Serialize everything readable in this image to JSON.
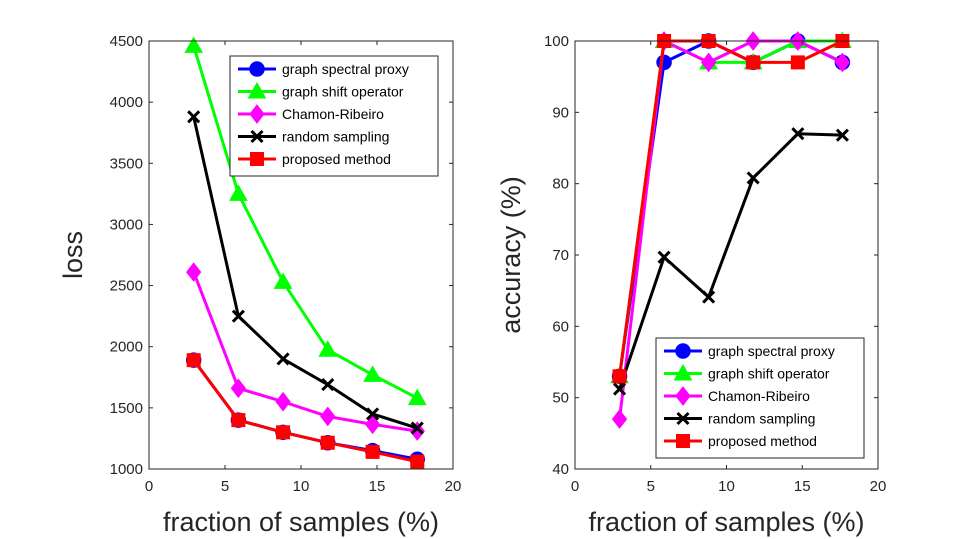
{
  "chart_data": [
    {
      "type": "line",
      "title": "",
      "xlabel": "fraction of samples (%)",
      "ylabel": "loss",
      "xlim": [
        0,
        20
      ],
      "ylim": [
        1000,
        4500
      ],
      "xticks": [
        0,
        5,
        10,
        15,
        20
      ],
      "yticks": [
        1000,
        1500,
        2000,
        2500,
        3000,
        3500,
        4000,
        4500
      ],
      "x": [
        2.94,
        5.88,
        8.82,
        11.76,
        14.71,
        17.65
      ],
      "legend_position": "top-right",
      "series": [
        {
          "name": "graph spectral proxy",
          "color": "#0000ff",
          "marker": "circle",
          "values": [
            1890,
            1400,
            1300,
            1215,
            1150,
            1080
          ]
        },
        {
          "name": "graph shift operator",
          "color": "#00ff00",
          "marker": "triangle",
          "values": [
            4460,
            3250,
            2530,
            1975,
            1770,
            1580
          ]
        },
        {
          "name": "Chamon-Ribeiro",
          "color": "#ff00ff",
          "marker": "diamond",
          "values": [
            2610,
            1660,
            1550,
            1430,
            1365,
            1310
          ]
        },
        {
          "name": "random sampling",
          "color": "#000000",
          "marker": "x",
          "values": [
            3880,
            2250,
            1900,
            1690,
            1450,
            1335
          ]
        },
        {
          "name": "proposed method",
          "color": "#ff0000",
          "marker": "square",
          "values": [
            1890,
            1400,
            1300,
            1215,
            1140,
            1060
          ]
        }
      ]
    },
    {
      "type": "line",
      "title": "",
      "xlabel": "fraction of samples (%)",
      "ylabel": "accuracy (%)",
      "xlim": [
        0,
        20
      ],
      "ylim": [
        40,
        100
      ],
      "xticks": [
        0,
        5,
        10,
        15,
        20
      ],
      "yticks": [
        40,
        50,
        60,
        70,
        80,
        90,
        100
      ],
      "x": [
        2.94,
        5.88,
        8.82,
        11.76,
        14.71,
        17.65
      ],
      "legend_position": "bottom-right",
      "series": [
        {
          "name": "graph spectral proxy",
          "color": "#0000ff",
          "marker": "circle",
          "values": [
            53,
            97,
            100,
            97,
            100,
            97
          ]
        },
        {
          "name": "graph shift operator",
          "color": "#00ff00",
          "marker": "triangle",
          "values": [
            53,
            100,
            97,
            97,
            100,
            100
          ]
        },
        {
          "name": "Chamon-Ribeiro",
          "color": "#ff00ff",
          "marker": "diamond",
          "values": [
            47,
            100,
            97,
            100,
            100,
            97
          ]
        },
        {
          "name": "random sampling",
          "color": "#000000",
          "marker": "x",
          "values": [
            51.2,
            69.7,
            64.1,
            80.8,
            87,
            86.8
          ]
        },
        {
          "name": "proposed method",
          "color": "#ff0000",
          "marker": "square",
          "values": [
            53,
            100,
            100,
            97,
            97,
            100
          ]
        }
      ]
    }
  ]
}
